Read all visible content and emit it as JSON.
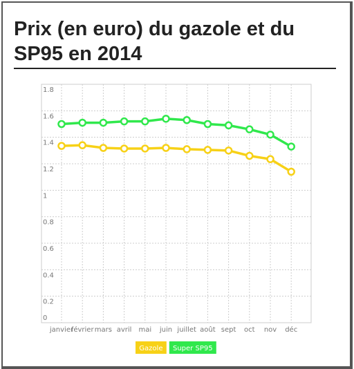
{
  "chart_data": {
    "type": "line",
    "title": "Prix (en euro) du gazole et du SP95 en 2014",
    "categories": [
      "janvier",
      "février",
      "mars",
      "avril",
      "mai",
      "juin",
      "juillet",
      "août",
      "sept",
      "oct",
      "nov",
      "déc"
    ],
    "series": [
      {
        "name": "Gazole",
        "color": "#f7d117",
        "values": [
          1.335,
          1.34,
          1.32,
          1.315,
          1.315,
          1.32,
          1.31,
          1.305,
          1.3,
          1.26,
          1.235,
          1.14
        ]
      },
      {
        "name": "Super SP95",
        "color": "#30e84c",
        "values": [
          1.5,
          1.51,
          1.51,
          1.52,
          1.52,
          1.54,
          1.53,
          1.5,
          1.49,
          1.46,
          1.42,
          1.33
        ]
      }
    ],
    "ylim": [
      0,
      1.8
    ],
    "yticks": [
      0,
      0.2,
      0.4,
      0.6,
      0.8,
      1,
      1.2,
      1.4,
      1.6,
      1.8
    ],
    "grid": true,
    "legend": "bottom"
  }
}
